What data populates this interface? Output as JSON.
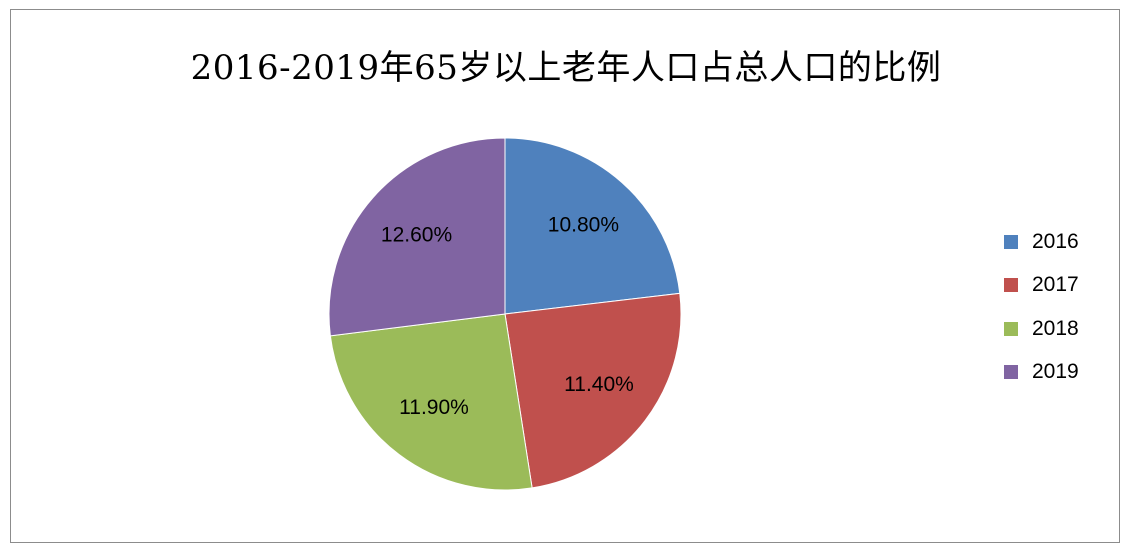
{
  "chart_data": {
    "type": "pie",
    "title": "2016-2019年65岁以上老年人口占总人口的比例",
    "categories": [
      "2016",
      "2017",
      "2018",
      "2019"
    ],
    "values": [
      10.8,
      11.4,
      11.9,
      12.6
    ],
    "labels": [
      "10.80%",
      "11.40%",
      "11.90%",
      "12.60%"
    ],
    "colors": [
      "#4f81bd",
      "#c0504d",
      "#9bbb59",
      "#8064a2"
    ],
    "legend_position": "right"
  }
}
